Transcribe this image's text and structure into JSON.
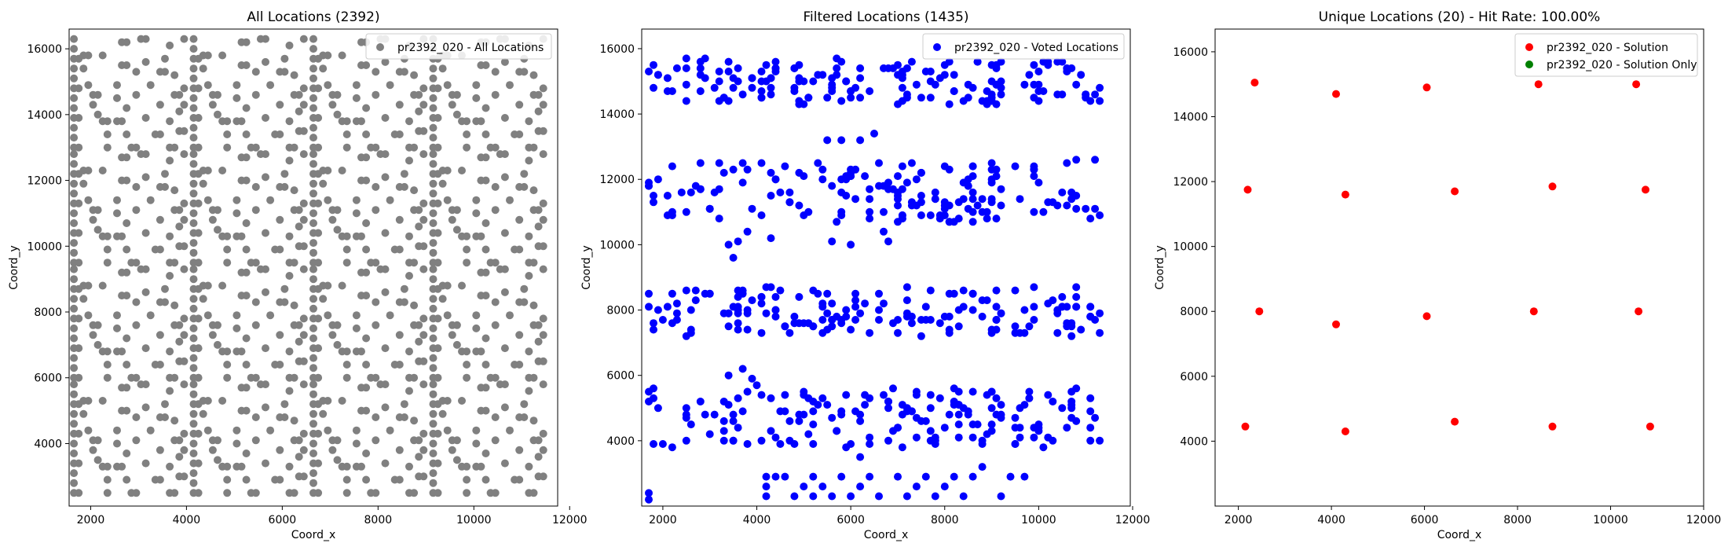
{
  "chart_data": [
    {
      "type": "scatter",
      "title": "All Locations (2392)",
      "xlabel": "Coord_x",
      "ylabel": "Coord_y",
      "xlim": [
        1550,
        11750
      ],
      "ylim": [
        2100,
        16600
      ],
      "xticks": [
        2000,
        4000,
        6000,
        8000,
        10000,
        12000
      ],
      "yticks": [
        4000,
        6000,
        8000,
        10000,
        12000,
        14000,
        16000
      ],
      "legend_position": "top-right",
      "series": [
        {
          "name": "pr2392_020 - All Locations",
          "color": "#808080",
          "generation": {
            "kind": "tiled",
            "tile_x0": [
              1650,
              4150,
              6650,
              9150
            ],
            "tile_y0": [
              2300,
              5800,
              9300,
              12800
            ],
            "motif": [
              [
                0,
                200
              ],
              [
                0,
                500
              ],
              [
                0,
                800
              ],
              [
                0,
                1100
              ],
              [
                0,
                1400
              ],
              [
                0,
                1700
              ],
              [
                0,
                2000
              ],
              [
                0,
                2300
              ],
              [
                0,
                2600
              ],
              [
                0,
                2900
              ],
              [
                0,
                3200
              ],
              [
                0,
                3500
              ],
              [
                200,
                3000
              ],
              [
                200,
                2600
              ],
              [
                300,
                2100
              ],
              [
                400,
                1800
              ],
              [
                400,
                1500
              ],
              [
                500,
                1200
              ],
              [
                600,
                1000
              ],
              [
                700,
                600
              ],
              [
                700,
                200
              ],
              [
                900,
                1000
              ],
              [
                900,
                1700
              ],
              [
                900,
                2100
              ],
              [
                1000,
                2700
              ],
              [
                1100,
                1400
              ],
              [
                1100,
                600
              ],
              [
                1200,
                200
              ],
              [
                1300,
                1800
              ],
              [
                1300,
                2500
              ],
              [
                1400,
                3500
              ],
              [
                1500,
                1100
              ],
              [
                1600,
                2100
              ],
              [
                1700,
                600
              ],
              [
                1800,
                1500
              ],
              [
                1900,
                2900
              ],
              [
                2000,
                200
              ],
              [
                2000,
                1000
              ],
              [
                2000,
                3300
              ],
              [
                2100,
                1800
              ],
              [
                2100,
                2400
              ],
              [
                2200,
                1300
              ],
              [
                2200,
                700
              ],
              [
                2300,
                3500
              ],
              [
                2300,
                2000
              ],
              [
                1000,
                3400
              ],
              [
                600,
                3000
              ],
              [
                1500,
                2800
              ],
              [
                1800,
                2500
              ],
              [
                2300,
                1500
              ]
            ]
          }
        }
      ]
    },
    {
      "type": "scatter",
      "title": "Filtered Locations (1435)",
      "xlabel": "Coord_x",
      "ylabel": "Coord_y",
      "xlim": [
        1550,
        11950
      ],
      "ylim": [
        2000,
        16600
      ],
      "xticks": [
        2000,
        4000,
        6000,
        8000,
        10000,
        12000
      ],
      "yticks": [
        4000,
        6000,
        8000,
        10000,
        12000,
        14000,
        16000
      ],
      "legend_position": "top-right",
      "series": [
        {
          "name": "pr2392_020 - Voted Locations",
          "color": "#0000ff",
          "generation": {
            "kind": "banded",
            "bands": [
              [
                14300,
                15700
              ],
              [
                10700,
                12600
              ],
              [
                7200,
                8700
              ],
              [
                3800,
                5600
              ]
            ],
            "x_range": [
              1650,
              11300
            ],
            "gaps": [
              [
                3950,
                4050
              ],
              [
                6450,
                6580
              ],
              [
                9250,
                9450
              ]
            ],
            "extras": [
              [
                1700,
                2200
              ],
              [
                1700,
                2400
              ],
              [
                4200,
                2300
              ],
              [
                4200,
                2600
              ],
              [
                4200,
                2900
              ],
              [
                4400,
                2900
              ],
              [
                4600,
                2900
              ],
              [
                4800,
                2300
              ],
              [
                5000,
                2600
              ],
              [
                5200,
                2300
              ],
              [
                5200,
                2900
              ],
              [
                5400,
                2600
              ],
              [
                5600,
                2300
              ],
              [
                5800,
                2900
              ],
              [
                6000,
                2300
              ],
              [
                6200,
                2600
              ],
              [
                6200,
                3500
              ],
              [
                6400,
                2900
              ],
              [
                6600,
                2300
              ],
              [
                7000,
                2900
              ],
              [
                7200,
                2300
              ],
              [
                7400,
                2600
              ],
              [
                7600,
                2900
              ],
              [
                7800,
                2300
              ],
              [
                8000,
                2600
              ],
              [
                8200,
                2900
              ],
              [
                8400,
                2300
              ],
              [
                8600,
                2900
              ],
              [
                8800,
                3200
              ],
              [
                9200,
                2300
              ],
              [
                9400,
                2900
              ],
              [
                9700,
                2900
              ],
              [
                3600,
                10100
              ],
              [
                3800,
                10400
              ],
              [
                3400,
                10000
              ],
              [
                4300,
                10200
              ],
              [
                5600,
                10100
              ],
              [
                6000,
                10000
              ],
              [
                6700,
                10400
              ],
              [
                6800,
                10100
              ],
              [
                3400,
                6000
              ],
              [
                3700,
                6200
              ],
              [
                3900,
                5900
              ],
              [
                3500,
                9600
              ],
              [
                5800,
                13200
              ],
              [
                6200,
                13200
              ],
              [
                6500,
                13400
              ],
              [
                5500,
                13200
              ],
              [
                4000,
                5700
              ]
            ]
          }
        }
      ]
    },
    {
      "type": "scatter",
      "title": "Unique Locations (20) - Hit Rate: 100.00%",
      "xlabel": "Coord_x",
      "ylabel": "Coord_y",
      "xlim": [
        1500,
        12000
      ],
      "ylim": [
        2000,
        16700
      ],
      "xticks": [
        2000,
        4000,
        6000,
        8000,
        10000,
        12000
      ],
      "yticks": [
        4000,
        6000,
        8000,
        10000,
        12000,
        14000,
        16000
      ],
      "legend_position": "top-right",
      "series": [
        {
          "name": "pr2392_020 - Solution",
          "color": "#ff0000",
          "points": [
            [
              2350,
              15050
            ],
            [
              4100,
              14700
            ],
            [
              6050,
              14900
            ],
            [
              8450,
              15000
            ],
            [
              10550,
              15000
            ],
            [
              2200,
              11750
            ],
            [
              4300,
              11600
            ],
            [
              6650,
              11700
            ],
            [
              8750,
              11850
            ],
            [
              10750,
              11750
            ],
            [
              2450,
              8000
            ],
            [
              4100,
              7600
            ],
            [
              6050,
              7850
            ],
            [
              8350,
              8000
            ],
            [
              10600,
              8000
            ],
            [
              2150,
              4450
            ],
            [
              4300,
              4300
            ],
            [
              6650,
              4600
            ],
            [
              8750,
              4450
            ],
            [
              10850,
              4450
            ]
          ]
        },
        {
          "name": "pr2392_020 - Solution Only",
          "color": "#008000",
          "points": []
        }
      ]
    }
  ]
}
